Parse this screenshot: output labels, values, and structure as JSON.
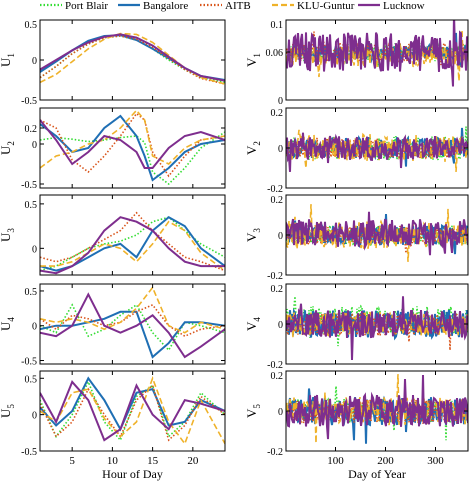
{
  "legend": {
    "placement": "top",
    "entries": [
      {
        "label": "Port Blair",
        "color": "#33dd33",
        "style": "dotted"
      },
      {
        "label": "Bangalore",
        "color": "#1f6fb4",
        "style": "solid"
      },
      {
        "label": "AITB",
        "color": "#d9541a",
        "style": "dotted"
      },
      {
        "label": "KLU-Guntur",
        "color": "#efb22a",
        "style": "dashed"
      },
      {
        "label": "Lucknow",
        "color": "#7e2e8e",
        "style": "solid"
      }
    ]
  },
  "chart_data": [
    {
      "type": "line",
      "ylabel_main": "U",
      "ylabel_sub": "1",
      "xlim": [
        1,
        24
      ],
      "ylim": [
        -0.5,
        0.5
      ],
      "yticks": [
        -0.5,
        0,
        0.5
      ],
      "yticklabels": [
        "-0.5",
        "0",
        "0.5"
      ],
      "xlabel": "",
      "xticks": [
        5,
        10,
        15,
        20
      ],
      "xticklabels": [],
      "x": [
        1,
        3,
        5,
        7,
        9,
        11,
        13,
        15,
        17,
        19,
        21,
        24
      ],
      "series": [
        {
          "name": "Port Blair",
          "values": [
            -0.22,
            -0.08,
            0.08,
            0.2,
            0.28,
            0.3,
            0.25,
            0.14,
            0.0,
            -0.12,
            -0.22,
            -0.28
          ]
        },
        {
          "name": "Bangalore",
          "values": [
            -0.15,
            -0.02,
            0.12,
            0.24,
            0.3,
            0.31,
            0.25,
            0.14,
            0.02,
            -0.1,
            -0.2,
            -0.25
          ]
        },
        {
          "name": "AITB",
          "values": [
            -0.22,
            -0.08,
            0.08,
            0.2,
            0.28,
            0.3,
            0.26,
            0.16,
            0.02,
            -0.12,
            -0.23,
            -0.3
          ]
        },
        {
          "name": "KLU-Guntur",
          "values": [
            -0.28,
            -0.18,
            -0.02,
            0.14,
            0.26,
            0.33,
            0.32,
            0.22,
            0.06,
            -0.1,
            -0.22,
            -0.3
          ]
        },
        {
          "name": "Lucknow",
          "values": [
            -0.12,
            0.0,
            0.12,
            0.22,
            0.29,
            0.32,
            0.28,
            0.18,
            0.04,
            -0.1,
            -0.2,
            -0.26
          ]
        }
      ]
    },
    {
      "type": "line",
      "ylabel_main": "V",
      "ylabel_sub": "1",
      "xlim": [
        1,
        365
      ],
      "ylim": [
        0,
        0.1
      ],
      "yticks": [
        0,
        0.06,
        0.1
      ],
      "yticklabels": [
        "0",
        "0.06",
        "0.1"
      ],
      "xlabel": "",
      "xticks": [
        100,
        200,
        300
      ],
      "xticklabels": [],
      "series": [
        {
          "name": "Port Blair",
          "center": 0.06,
          "amplitude": 0.012,
          "seed": 11
        },
        {
          "name": "Bangalore",
          "center": 0.058,
          "amplitude": 0.01,
          "seed": 12
        },
        {
          "name": "AITB",
          "center": 0.06,
          "amplitude": 0.012,
          "seed": 13
        },
        {
          "name": "KLU-Guntur",
          "center": 0.055,
          "amplitude": 0.014,
          "seed": 14
        },
        {
          "name": "Lucknow",
          "center": 0.06,
          "amplitude": 0.025,
          "seed": 15
        }
      ]
    },
    {
      "type": "line",
      "ylabel_main": "U",
      "ylabel_sub": "2",
      "xlim": [
        1,
        24
      ],
      "ylim": [
        -0.55,
        0.45
      ],
      "yticks": [
        -0.5,
        0,
        0.2
      ],
      "yticklabels": [
        "-0.5",
        "0",
        "0.2"
      ],
      "xlabel": "",
      "xticks": [
        5,
        10,
        15,
        20
      ],
      "xticklabels": [],
      "x": [
        1,
        3,
        5,
        7,
        9,
        11,
        13,
        14,
        15,
        17,
        19,
        21,
        24
      ],
      "series": [
        {
          "name": "Port Blair",
          "values": [
            0.05,
            0.08,
            0.06,
            0.03,
            0.05,
            0.08,
            0.1,
            0.02,
            -0.35,
            -0.5,
            -0.3,
            -0.05,
            0.15
          ]
        },
        {
          "name": "Bangalore",
          "values": [
            0.25,
            0.1,
            -0.1,
            -0.05,
            0.2,
            0.35,
            0.1,
            -0.15,
            -0.45,
            -0.3,
            -0.1,
            0.0,
            0.05
          ]
        },
        {
          "name": "AITB",
          "values": [
            0.3,
            0.2,
            -0.2,
            -0.35,
            -0.15,
            0.1,
            0.38,
            0.3,
            -0.1,
            -0.4,
            -0.15,
            0.05,
            0.1
          ]
        },
        {
          "name": "KLU-Guntur",
          "values": [
            -0.3,
            -0.15,
            -0.1,
            0.0,
            0.05,
            0.2,
            0.42,
            0.3,
            -0.15,
            -0.25,
            -0.05,
            0.05,
            0.1
          ]
        },
        {
          "name": "Lucknow",
          "values": [
            0.3,
            0.05,
            -0.25,
            -0.1,
            0.1,
            0.05,
            -0.1,
            -0.3,
            -0.3,
            -0.05,
            0.1,
            0.15,
            0.05
          ]
        }
      ]
    },
    {
      "type": "line",
      "ylabel_main": "V",
      "ylabel_sub": "2",
      "xlim": [
        1,
        365
      ],
      "ylim": [
        -0.2,
        0.2
      ],
      "yticks": [
        -0.2,
        0,
        0.2
      ],
      "yticklabels": [
        "-0.2",
        "0",
        "0.2"
      ],
      "xlabel": "",
      "xticks": [
        100,
        200,
        300
      ],
      "xticklabels": [],
      "series": [
        {
          "name": "Port Blair",
          "center": 0.0,
          "amplitude": 0.06,
          "seed": 21
        },
        {
          "name": "Bangalore",
          "center": 0.0,
          "amplitude": 0.05,
          "seed": 22
        },
        {
          "name": "AITB",
          "center": 0.0,
          "amplitude": 0.05,
          "seed": 23
        },
        {
          "name": "KLU-Guntur",
          "center": 0.0,
          "amplitude": 0.07,
          "seed": 24
        },
        {
          "name": "Lucknow",
          "center": 0.0,
          "amplitude": 0.06,
          "seed": 25
        }
      ]
    },
    {
      "type": "line",
      "ylabel_main": "U",
      "ylabel_sub": "3",
      "xlim": [
        1,
        24
      ],
      "ylim": [
        -0.3,
        0.6
      ],
      "yticks": [
        0,
        0.5
      ],
      "yticklabels": [
        "0",
        "0.5"
      ],
      "xlabel": "",
      "xticks": [
        5,
        10,
        15,
        20
      ],
      "xticklabels": [],
      "x": [
        1,
        3,
        5,
        7,
        9,
        11,
        13,
        15,
        17,
        19,
        21,
        24
      ],
      "series": [
        {
          "name": "Port Blair",
          "values": [
            -0.25,
            -0.2,
            -0.1,
            0.0,
            0.05,
            0.08,
            0.15,
            0.3,
            0.35,
            0.2,
            0.05,
            -0.1
          ]
        },
        {
          "name": "Bangalore",
          "values": [
            -0.2,
            -0.25,
            -0.2,
            -0.1,
            0.0,
            0.05,
            -0.1,
            0.2,
            0.35,
            0.25,
            0.0,
            -0.2
          ]
        },
        {
          "name": "AITB",
          "values": [
            -0.1,
            -0.15,
            -0.1,
            0.0,
            0.1,
            0.2,
            0.4,
            0.2,
            0.05,
            -0.1,
            -0.15,
            -0.25
          ]
        },
        {
          "name": "KLU-Guntur",
          "values": [
            -0.2,
            -0.2,
            -0.15,
            -0.05,
            0.05,
            0.0,
            -0.15,
            0.05,
            0.3,
            0.2,
            -0.05,
            -0.25
          ]
        },
        {
          "name": "Lucknow",
          "values": [
            -0.25,
            -0.28,
            -0.2,
            -0.05,
            0.2,
            0.35,
            0.3,
            0.2,
            0.0,
            -0.15,
            -0.2,
            -0.2
          ]
        }
      ]
    },
    {
      "type": "line",
      "ylabel_main": "V",
      "ylabel_sub": "3",
      "xlim": [
        1,
        365
      ],
      "ylim": [
        -0.2,
        0.2
      ],
      "yticks": [
        -0.2,
        0,
        0.2
      ],
      "yticklabels": [
        "-0.2",
        "0",
        "0.2"
      ],
      "xlabel": "",
      "xticks": [
        100,
        200,
        300
      ],
      "xticklabels": [],
      "series": [
        {
          "name": "Port Blair",
          "center": 0.0,
          "amplitude": 0.05,
          "seed": 31
        },
        {
          "name": "Bangalore",
          "center": 0.0,
          "amplitude": 0.05,
          "seed": 32
        },
        {
          "name": "AITB",
          "center": 0.0,
          "amplitude": 0.05,
          "seed": 33
        },
        {
          "name": "KLU-Guntur",
          "center": 0.0,
          "amplitude": 0.07,
          "seed": 34
        },
        {
          "name": "Lucknow",
          "center": 0.01,
          "amplitude": 0.07,
          "seed": 35
        }
      ]
    },
    {
      "type": "line",
      "ylabel_main": "U",
      "ylabel_sub": "4",
      "xlim": [
        1,
        24
      ],
      "ylim": [
        -0.55,
        0.6
      ],
      "yticks": [
        -0.5,
        0,
        0.5
      ],
      "yticklabels": [
        "-0.5",
        "0",
        "0.5"
      ],
      "xlabel": "",
      "xticks": [
        5,
        10,
        15,
        20
      ],
      "xticklabels": [],
      "x": [
        1,
        3,
        5,
        7,
        9,
        11,
        13,
        15,
        17,
        19,
        21,
        24
      ],
      "series": [
        {
          "name": "Port Blair",
          "values": [
            0.0,
            -0.1,
            0.3,
            -0.15,
            -0.05,
            0.15,
            0.3,
            -0.1,
            -0.35,
            0.05,
            0.0,
            -0.1
          ]
        },
        {
          "name": "Bangalore",
          "values": [
            -0.05,
            0.0,
            0.0,
            0.05,
            0.1,
            0.2,
            0.2,
            -0.45,
            -0.25,
            0.05,
            0.05,
            0.0
          ]
        },
        {
          "name": "AITB",
          "values": [
            0.1,
            -0.05,
            0.15,
            0.1,
            0.0,
            0.05,
            0.2,
            0.3,
            0.0,
            -0.15,
            -0.05,
            0.0
          ]
        },
        {
          "name": "KLU-Guntur",
          "values": [
            0.1,
            0.05,
            0.1,
            0.05,
            -0.05,
            0.05,
            0.25,
            0.55,
            0.0,
            -0.1,
            0.05,
            -0.05
          ]
        },
        {
          "name": "Lucknow",
          "values": [
            -0.1,
            -0.15,
            0.0,
            0.45,
            0.0,
            -0.1,
            0.0,
            0.15,
            -0.1,
            -0.45,
            -0.3,
            -0.05
          ]
        }
      ]
    },
    {
      "type": "line",
      "ylabel_main": "V",
      "ylabel_sub": "4",
      "xlim": [
        1,
        365
      ],
      "ylim": [
        -0.2,
        0.2
      ],
      "yticks": [
        -0.2,
        0,
        0.2
      ],
      "yticklabels": [
        "-0.2",
        "0",
        "0.2"
      ],
      "xlabel": "",
      "xticks": [
        100,
        200,
        300
      ],
      "xticklabels": [],
      "series": [
        {
          "name": "Port Blair",
          "center": 0.02,
          "amplitude": 0.07,
          "seed": 41
        },
        {
          "name": "Bangalore",
          "center": 0.0,
          "amplitude": 0.07,
          "seed": 42
        },
        {
          "name": "AITB",
          "center": 0.0,
          "amplitude": 0.06,
          "seed": 43
        },
        {
          "name": "KLU-Guntur",
          "center": 0.0,
          "amplitude": 0.06,
          "seed": 44
        },
        {
          "name": "Lucknow",
          "center": 0.0,
          "amplitude": 0.07,
          "seed": 45
        }
      ]
    },
    {
      "type": "line",
      "ylabel_main": "U",
      "ylabel_sub": "5",
      "xlim": [
        1,
        24
      ],
      "ylim": [
        -0.5,
        0.6
      ],
      "yticks": [
        -0.5,
        0,
        0.5
      ],
      "yticklabels": [
        "-0.5",
        "0",
        "0.5"
      ],
      "xlabel": "Hour of Day",
      "xticks": [
        5,
        10,
        15,
        20
      ],
      "xticklabels": [
        "5",
        "10",
        "15",
        "20"
      ],
      "x": [
        1,
        3,
        5,
        7,
        9,
        11,
        13,
        15,
        17,
        19,
        21,
        24
      ],
      "series": [
        {
          "name": "Port Blair",
          "values": [
            0.2,
            -0.3,
            0.0,
            0.45,
            -0.1,
            -0.35,
            0.25,
            0.4,
            -0.3,
            -0.1,
            0.3,
            0.0
          ]
        },
        {
          "name": "Bangalore",
          "values": [
            0.1,
            -0.15,
            0.05,
            0.5,
            0.2,
            -0.2,
            0.3,
            0.35,
            -0.15,
            -0.1,
            0.2,
            0.05
          ]
        },
        {
          "name": "AITB",
          "values": [
            0.15,
            -0.3,
            -0.1,
            0.35,
            0.0,
            -0.3,
            0.2,
            0.4,
            -0.35,
            -0.15,
            0.25,
            0.0
          ]
        },
        {
          "name": "KLU-Guntur",
          "values": [
            0.05,
            -0.1,
            0.3,
            0.35,
            -0.05,
            -0.3,
            -0.1,
            0.5,
            -0.1,
            -0.4,
            0.2,
            -0.4
          ]
        },
        {
          "name": "Lucknow",
          "values": [
            0.3,
            -0.1,
            0.45,
            0.2,
            -0.35,
            -0.2,
            0.4,
            0.0,
            -0.2,
            0.2,
            0.15,
            0.05
          ]
        }
      ]
    },
    {
      "type": "line",
      "ylabel_main": "V",
      "ylabel_sub": "5",
      "xlim": [
        1,
        365
      ],
      "ylim": [
        -0.2,
        0.2
      ],
      "yticks": [
        -0.2,
        0,
        0.2
      ],
      "yticklabels": [
        "-0.2",
        "0",
        "0.2"
      ],
      "xlabel": "Day of Year",
      "xticks": [
        100,
        200,
        300
      ],
      "xticklabels": [
        "100",
        "200",
        "300"
      ],
      "series": [
        {
          "name": "Port Blair",
          "center": 0.0,
          "amplitude": 0.06,
          "seed": 51
        },
        {
          "name": "Bangalore",
          "center": 0.0,
          "amplitude": 0.07,
          "seed": 52
        },
        {
          "name": "AITB",
          "center": 0.0,
          "amplitude": 0.06,
          "seed": 53
        },
        {
          "name": "KLU-Guntur",
          "center": 0.0,
          "amplitude": 0.07,
          "seed": 54
        },
        {
          "name": "Lucknow",
          "center": 0.0,
          "amplitude": 0.08,
          "seed": 55
        }
      ]
    }
  ]
}
